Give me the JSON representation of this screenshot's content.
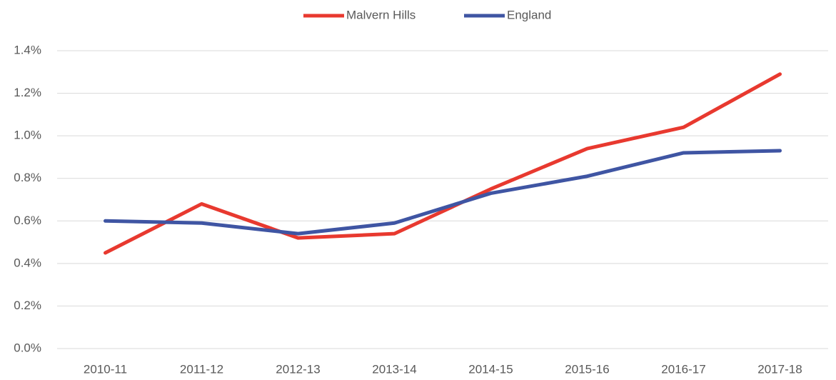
{
  "chart_data": {
    "type": "line",
    "categories": [
      "2010-11",
      "2011-12",
      "2012-13",
      "2013-14",
      "2014-15",
      "2015-16",
      "2016-17",
      "2017-18"
    ],
    "series": [
      {
        "name": "Malvern Hills",
        "color": "#e8392f",
        "values": [
          0.45,
          0.68,
          0.52,
          0.54,
          0.75,
          0.94,
          1.04,
          1.29
        ]
      },
      {
        "name": "England",
        "color": "#3f55a3",
        "values": [
          0.6,
          0.59,
          0.54,
          0.59,
          0.73,
          0.81,
          0.92,
          0.93
        ]
      }
    ],
    "ylim": [
      0,
      1.4
    ],
    "yticks": [
      {
        "value": 0,
        "label": "0.0%"
      },
      {
        "value": 0.2,
        "label": "0.2%"
      },
      {
        "value": 0.4,
        "label": "0.4%"
      },
      {
        "value": 0.6,
        "label": "0.6%"
      },
      {
        "value": 0.8,
        "label": "0.8%"
      },
      {
        "value": 1.0,
        "label": "1.0%"
      },
      {
        "value": 1.2,
        "label": "1.2%"
      },
      {
        "value": 1.4,
        "label": "1.4%"
      }
    ],
    "grid": true,
    "legend": "top"
  }
}
